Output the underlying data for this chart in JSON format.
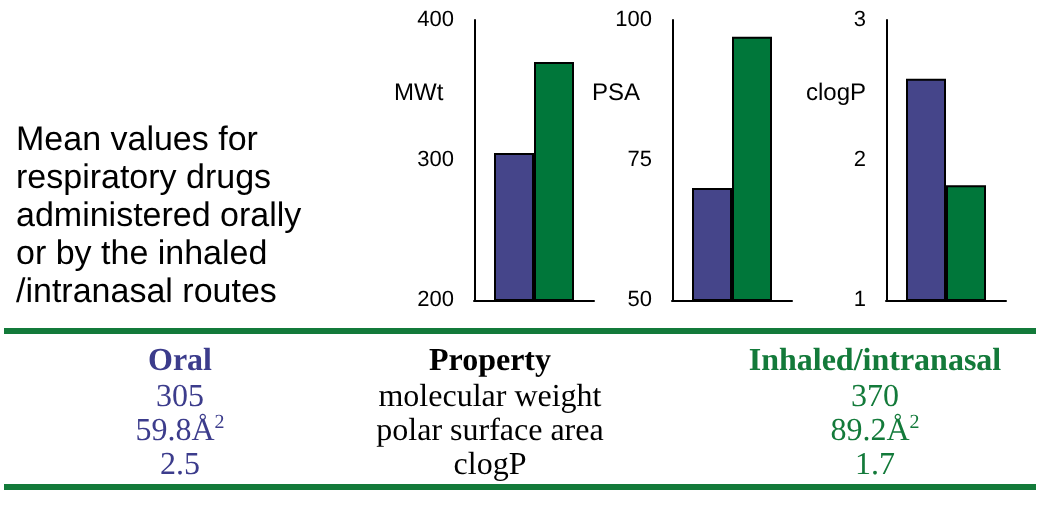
{
  "chart_data": [
    {
      "type": "other",
      "title": "Mean values for\nrespiratory drugs\nadministered orally\nor by the inhaled\n/intranasal routes"
    },
    {
      "type": "bar",
      "ylabel": "MWt",
      "categories": [
        null
      ],
      "ylim": [
        200,
        400
      ],
      "yticks": [
        200,
        300,
        400
      ],
      "grid": false,
      "series": [
        {
          "color": "#45458a",
          "values": [
            305
          ]
        },
        {
          "color": "#00773a",
          "values": [
            370
          ]
        }
      ]
    },
    {
      "type": "bar",
      "ylabel": "PSA",
      "categories": [
        null
      ],
      "ylim": [
        50,
        100
      ],
      "yticks": [
        50,
        75,
        100
      ],
      "grid": false,
      "series": [
        {
          "color": "#45458a",
          "values": [
            70
          ]
        },
        {
          "color": "#00773a",
          "values": [
            97
          ]
        }
      ]
    },
    {
      "type": "bar",
      "ylabel": "clogP",
      "categories": [
        null
      ],
      "ylim": [
        1,
        3
      ],
      "yticks": [
        1,
        2,
        3
      ],
      "grid": false,
      "series": [
        {
          "color": "#45458a",
          "values": [
            2.58
          ]
        },
        {
          "color": "#00773a",
          "values": [
            1.82
          ]
        }
      ]
    },
    {
      "type": "other",
      "legend_title": "Property",
      "categories": [
        "molecular weight",
        "polar surface area",
        "clogP"
      ],
      "series": [
        {
          "name": "Oral",
          "color": "#3c3c8c",
          "values": [
            305,
            59.8,
            2.5
          ],
          "value_labels": [
            "305",
            "59.8Å$^{2}$",
            "2.5"
          ]
        },
        {
          "name": "Inhaled/intranasal",
          "color": "#137a3a",
          "values": [
            370,
            89.2,
            1.7
          ],
          "value_labels": [
            "370",
            "89.2Å$^{2}$",
            "1.7"
          ]
        }
      ]
    }
  ]
}
